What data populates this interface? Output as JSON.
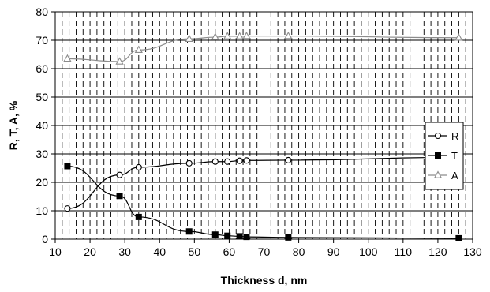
{
  "chart_data": {
    "type": "line",
    "xlabel": "Thickness d, nm",
    "ylabel": "R, T, A, %",
    "xlim": [
      10,
      130
    ],
    "ylim": [
      0,
      80
    ],
    "xticks": [
      10,
      20,
      30,
      40,
      50,
      60,
      70,
      80,
      90,
      100,
      110,
      120,
      130
    ],
    "yticks": [
      0,
      10,
      20,
      30,
      40,
      50,
      60,
      70,
      80
    ],
    "grid": "horizontal solid, vertical dashed",
    "legend_position": "right",
    "series": [
      {
        "name": "R",
        "color": "#000000",
        "marker": "open-circle",
        "x": [
          13.5,
          28.5,
          34,
          48.5,
          56,
          59.5,
          63,
          65,
          77,
          126
        ],
        "y": [
          10.8,
          22.6,
          25.3,
          26.7,
          27.3,
          27.3,
          27.6,
          27.7,
          27.8,
          28.8
        ]
      },
      {
        "name": "T",
        "color": "#000000",
        "marker": "filled-square",
        "x": [
          13.5,
          28.5,
          34,
          48.5,
          56,
          59.5,
          63,
          65,
          77,
          126
        ],
        "y": [
          25.7,
          15.2,
          7.8,
          2.7,
          1.6,
          1.2,
          1.0,
          0.8,
          0.6,
          0.3
        ]
      },
      {
        "name": "A",
        "color": "#8c8c8c",
        "marker": "open-triangle",
        "x": [
          13.5,
          28.5,
          34,
          48.5,
          56,
          59.5,
          63,
          65,
          77,
          126
        ],
        "y": [
          63.5,
          62.5,
          66.6,
          70.5,
          71.1,
          71.4,
          71.4,
          71.5,
          71.5,
          70.9
        ]
      }
    ]
  }
}
